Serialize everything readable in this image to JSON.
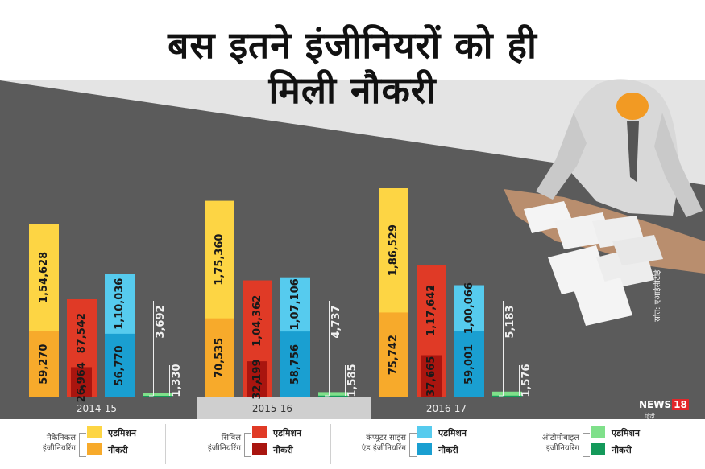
{
  "title_lines": [
    "बस इतने इंजीनियरों को ही",
    "मिली नौकरी"
  ],
  "credit": "स्रोत: एआईसीटीई",
  "logo": {
    "brand": "NEWS",
    "num": "18",
    "sub": "हिंदी"
  },
  "colors": {
    "background_dark": "#5b5b5b",
    "background_light": "#e4e4e4",
    "mechanical_admission": "#fdd544",
    "mechanical_job": "#f7aa2b",
    "civil_admission": "#e03a26",
    "civil_job": "#a9150f",
    "cs_admission": "#56cbee",
    "cs_job": "#1a9fd1",
    "auto_admission": "#7fe08a",
    "auto_job": "#14995a"
  },
  "legend": {
    "admission_label": "एडमिशन",
    "job_label": "नौकरी",
    "branches": [
      {
        "name_lines": [
          "मैकेनिकल",
          "इंजीनियरिंग"
        ],
        "admission_color": "#fdd544",
        "job_color": "#f7aa2b"
      },
      {
        "name_lines": [
          "सिविल",
          "इंजीनियरिंग"
        ],
        "admission_color": "#e03a26",
        "job_color": "#a9150f"
      },
      {
        "name_lines": [
          "कंप्यूटर साइंस",
          "एंड इंजीनियरिंग"
        ],
        "admission_color": "#56cbee",
        "job_color": "#1a9fd1"
      },
      {
        "name_lines": [
          "ऑटोमोबाइल",
          "इंजीनियरिंग"
        ],
        "admission_color": "#7fe08a",
        "job_color": "#14995a"
      }
    ]
  },
  "chart_data": {
    "type": "bar",
    "categories": [
      "2014-15",
      "2015-16",
      "2016-17"
    ],
    "branches": [
      "मैकेनिकल इंजीनियरिंग",
      "सिविल इंजीनियरिंग",
      "कंप्यूटर साइंस एंड इंजीनियरिंग",
      "ऑटोमोबाइल इंजीनियरिंग"
    ],
    "admission": [
      [
        154628,
        87542,
        110036,
        3692
      ],
      [
        175360,
        104362,
        107106,
        4737
      ],
      [
        186529,
        117642,
        100066,
        5183
      ]
    ],
    "placement": [
      [
        59270,
        26964,
        56770,
        1330
      ],
      [
        70535,
        32199,
        58756,
        1585
      ],
      [
        75742,
        37665,
        59001,
        1576
      ]
    ],
    "admission_labels": [
      [
        "1,54,628",
        "87,542",
        "1,10,036",
        "3,692"
      ],
      [
        "1,75,360",
        "1,04,362",
        "1,07,106",
        "4,737"
      ],
      [
        "1,86,529",
        "1,17,642",
        "1,00,066",
        "5,183"
      ]
    ],
    "placement_labels": [
      [
        "59,270",
        "26,964",
        "56,770",
        "1,330"
      ],
      [
        "70,535",
        "32,199",
        "58,756",
        "1,585"
      ],
      [
        "75,742",
        "37,665",
        "59,001",
        "1,576"
      ]
    ]
  }
}
